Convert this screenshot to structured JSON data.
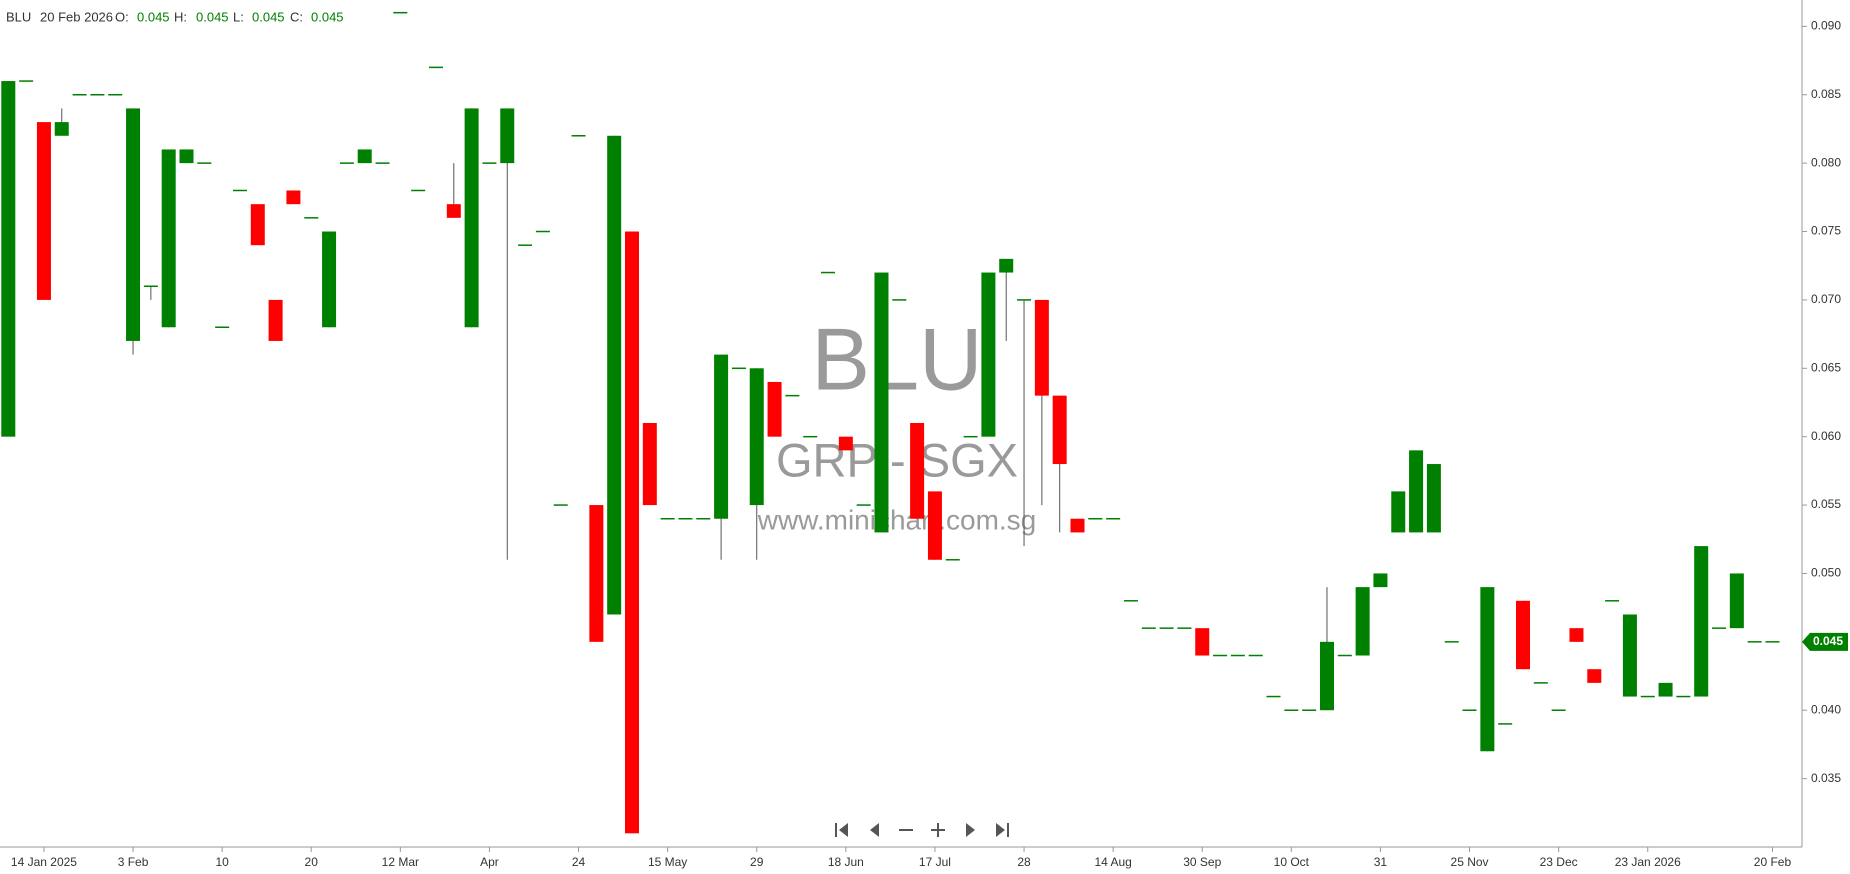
{
  "chart_data": {
    "type": "candlestick",
    "header": {
      "symbol": "BLU",
      "date": "20 Feb 2026",
      "o_label": "O:",
      "open": "0.045",
      "h_label": "H:",
      "high": "0.045",
      "l_label": "L:",
      "low": "0.045",
      "c_label": "C:",
      "close": "0.045"
    },
    "watermark": {
      "symbol": "BLU",
      "group": "GRP - SGX",
      "site": "www.minichart.com.sg"
    },
    "up_color": "#008000",
    "down_color": "#ff0000",
    "categories": [
      null,
      null,
      "14 Jan 2025",
      null,
      null,
      null,
      null,
      "3 Feb",
      null,
      null,
      null,
      null,
      "10",
      null,
      null,
      null,
      null,
      "20",
      null,
      null,
      null,
      null,
      "12 Mar",
      null,
      null,
      null,
      null,
      "Apr",
      null,
      null,
      null,
      null,
      "24",
      null,
      null,
      null,
      null,
      "15 May",
      null,
      null,
      null,
      null,
      "29",
      null,
      null,
      null,
      null,
      "18 Jun",
      null,
      null,
      null,
      null,
      "17 Jul",
      null,
      null,
      null,
      null,
      "28",
      null,
      null,
      null,
      null,
      "14 Aug",
      null,
      null,
      null,
      null,
      "30 Sep",
      null,
      null,
      null,
      null,
      "10 Oct",
      null,
      null,
      null,
      null,
      "31",
      null,
      null,
      null,
      null,
      "25 Nov",
      null,
      null,
      null,
      null,
      "23 Dec",
      null,
      null,
      null,
      null,
      "23 Jan 2026",
      null,
      null,
      null,
      null,
      null,
      null,
      "20 Feb"
    ],
    "open": [
      0.06,
      0.086,
      0.083,
      0.082,
      0.085,
      0.085,
      0.085,
      0.067,
      0.071,
      0.068,
      0.08,
      0.08,
      0.068,
      0.078,
      0.077,
      0.07,
      0.078,
      0.076,
      0.068,
      0.08,
      0.08,
      0.08,
      0.091,
      0.078,
      0.087,
      0.077,
      0.068,
      0.08,
      0.08,
      0.074,
      0.075,
      0.055,
      0.082,
      0.055,
      0.047,
      0.075,
      0.061,
      0.054,
      0.054,
      0.054,
      0.054,
      0.065,
      0.055,
      0.064,
      0.063,
      0.06,
      0.072,
      0.06,
      0.055,
      0.053,
      0.07,
      0.061,
      0.056,
      0.051,
      0.06,
      0.06,
      0.072,
      0.07,
      0.07,
      0.063,
      0.054,
      0.054,
      0.054,
      0.048,
      0.046,
      0.046,
      0.046,
      0.046,
      0.044,
      0.044,
      0.044,
      0.041,
      0.04,
      0.04,
      0.04,
      0.044,
      0.044,
      0.049,
      0.053,
      0.053,
      0.053,
      0.045,
      0.04,
      0.037,
      0.039,
      0.048,
      0.042,
      0.04,
      0.046,
      0.043,
      0.048,
      0.041,
      0.041,
      0.041,
      0.041,
      0.041,
      0.046,
      0.046,
      0.045,
      0.045
    ],
    "high": [
      0.086,
      0.086,
      0.083,
      0.084,
      0.085,
      0.085,
      0.085,
      0.084,
      0.071,
      0.081,
      0.081,
      0.08,
      0.068,
      0.078,
      0.077,
      0.07,
      0.078,
      0.076,
      0.075,
      0.08,
      0.081,
      0.08,
      0.091,
      0.078,
      0.087,
      0.08,
      0.084,
      0.08,
      0.084,
      0.074,
      0.075,
      0.055,
      0.082,
      0.055,
      0.082,
      0.075,
      0.061,
      0.054,
      0.054,
      0.054,
      0.066,
      0.065,
      0.065,
      0.064,
      0.063,
      0.06,
      0.072,
      0.06,
      0.055,
      0.072,
      0.07,
      0.061,
      0.056,
      0.051,
      0.06,
      0.072,
      0.073,
      0.07,
      0.07,
      0.063,
      0.054,
      0.054,
      0.054,
      0.048,
      0.046,
      0.046,
      0.046,
      0.046,
      0.044,
      0.044,
      0.044,
      0.041,
      0.04,
      0.04,
      0.049,
      0.044,
      0.049,
      0.05,
      0.056,
      0.059,
      0.058,
      0.045,
      0.04,
      0.049,
      0.039,
      0.048,
      0.042,
      0.04,
      0.046,
      0.043,
      0.048,
      0.047,
      0.041,
      0.042,
      0.041,
      0.052,
      0.046,
      0.05,
      0.045,
      0.045
    ],
    "low": [
      0.06,
      0.086,
      0.07,
      0.082,
      0.085,
      0.085,
      0.085,
      0.066,
      0.07,
      0.068,
      0.08,
      0.08,
      0.068,
      0.078,
      0.074,
      0.067,
      0.077,
      0.076,
      0.068,
      0.08,
      0.08,
      0.08,
      0.091,
      0.078,
      0.087,
      0.076,
      0.068,
      0.08,
      0.051,
      0.074,
      0.075,
      0.055,
      0.082,
      0.045,
      0.047,
      0.031,
      0.055,
      0.054,
      0.054,
      0.054,
      0.051,
      0.065,
      0.051,
      0.06,
      0.063,
      0.06,
      0.072,
      0.059,
      0.055,
      0.053,
      0.07,
      0.054,
      0.051,
      0.051,
      0.06,
      0.06,
      0.067,
      0.052,
      0.055,
      0.053,
      0.053,
      0.054,
      0.054,
      0.048,
      0.046,
      0.046,
      0.046,
      0.044,
      0.044,
      0.044,
      0.044,
      0.041,
      0.04,
      0.04,
      0.04,
      0.044,
      0.044,
      0.049,
      0.053,
      0.053,
      0.053,
      0.045,
      0.04,
      0.037,
      0.039,
      0.043,
      0.042,
      0.04,
      0.045,
      0.042,
      0.048,
      0.041,
      0.041,
      0.041,
      0.041,
      0.041,
      0.046,
      0.046,
      0.045,
      0.045
    ],
    "close": [
      0.086,
      0.086,
      0.07,
      0.083,
      0.085,
      0.085,
      0.085,
      0.084,
      0.071,
      0.081,
      0.081,
      0.08,
      0.068,
      0.078,
      0.074,
      0.067,
      0.077,
      0.076,
      0.075,
      0.08,
      0.081,
      0.08,
      0.091,
      0.078,
      0.087,
      0.076,
      0.084,
      0.08,
      0.084,
      0.074,
      0.075,
      0.055,
      0.082,
      0.045,
      0.082,
      0.031,
      0.055,
      0.054,
      0.054,
      0.054,
      0.066,
      0.065,
      0.065,
      0.06,
      0.063,
      0.06,
      0.072,
      0.059,
      0.055,
      0.072,
      0.07,
      0.054,
      0.051,
      0.051,
      0.06,
      0.072,
      0.073,
      0.07,
      0.063,
      0.058,
      0.053,
      0.054,
      0.054,
      0.048,
      0.046,
      0.046,
      0.046,
      0.044,
      0.044,
      0.044,
      0.044,
      0.041,
      0.04,
      0.04,
      0.045,
      0.044,
      0.049,
      0.05,
      0.056,
      0.059,
      0.058,
      0.045,
      0.04,
      0.049,
      0.039,
      0.043,
      0.042,
      0.04,
      0.045,
      0.042,
      0.048,
      0.047,
      0.041,
      0.042,
      0.041,
      0.052,
      0.046,
      0.05,
      0.045,
      0.045
    ],
    "ylim": [
      0.03,
      0.092
    ],
    "yticks": [
      0.035,
      {
        "value": 0.04,
        "label": "0.040"
      },
      0.045,
      {
        "value": 0.05,
        "label": "0.050"
      },
      0.055,
      {
        "value": 0.06,
        "label": "0.060"
      },
      0.065,
      {
        "value": 0.07,
        "label": "0.070"
      },
      0.075,
      {
        "value": 0.08,
        "label": "0.080"
      },
      0.085,
      {
        "value": 0.09,
        "label": "0.090"
      }
    ],
    "last_price": 0.045
  }
}
